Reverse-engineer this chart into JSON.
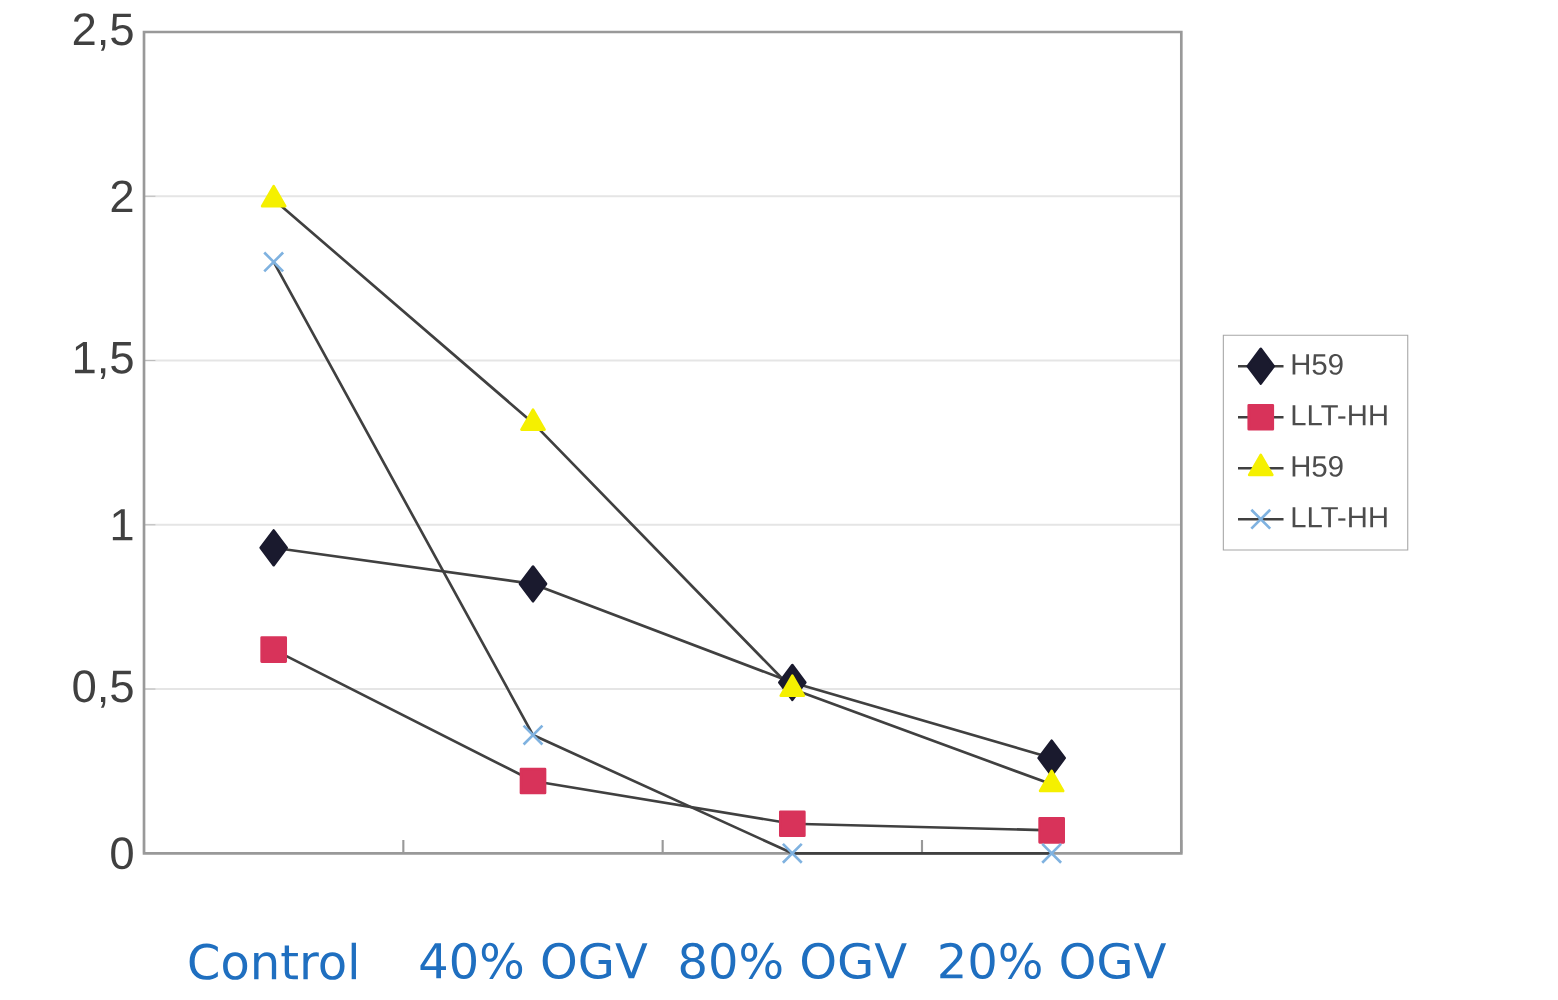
{
  "chart_data": {
    "type": "line",
    "categories": [
      "Control",
      "40% OGV",
      "80% OGV",
      "20% OGV"
    ],
    "series": [
      {
        "name": "H59",
        "color": "#1a1a2e",
        "marker": "diamond",
        "values": [
          0.93,
          0.82,
          0.52,
          0.29
        ]
      },
      {
        "name": "LLT-HH",
        "color": "#d8335a",
        "marker": "square",
        "values": [
          0.62,
          0.22,
          0.09,
          0.07
        ]
      },
      {
        "name": "H59",
        "color": "#f5f000",
        "marker": "triangle",
        "values": [
          1.99,
          1.31,
          0.5,
          0.21
        ]
      },
      {
        "name": "LLT-HH",
        "color": "#7fb2e0",
        "marker": "cross",
        "values": [
          1.8,
          0.36,
          0.0,
          0.0
        ]
      }
    ],
    "ylim": [
      0,
      2.5
    ],
    "yticks": [
      0,
      {
        "value": 0.5,
        "label": "0,5"
      },
      1,
      {
        "value": 1.5,
        "label": "1,5"
      },
      2,
      {
        "value": 2.5,
        "label": "2,5"
      }
    ],
    "grid": "y",
    "legend": "right",
    "line_style": "solid"
  }
}
